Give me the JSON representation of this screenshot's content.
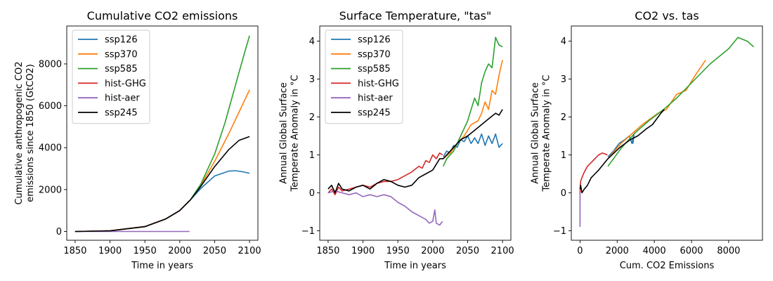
{
  "chart_data": [
    {
      "type": "line",
      "title": "Cumulative CO2 emissions",
      "xlabel": "Time in years",
      "ylabel": [
        "Cumulative anthropogenic CO2",
        "emissions since 1850 (GtCO2)"
      ],
      "xlim": [
        1838,
        2112
      ],
      "ylim": [
        -420,
        9810
      ],
      "xticks": [
        1850,
        1900,
        1950,
        2000,
        2050,
        2100
      ],
      "yticks": [
        0,
        2000,
        4000,
        6000,
        8000
      ],
      "legend": "upper-left",
      "series": [
        {
          "name": "ssp126",
          "color": "#1f77b4",
          "x": [
            1850,
            1900,
            1950,
            1980,
            2000,
            2015,
            2030,
            2050,
            2070,
            2080,
            2090,
            2100
          ],
          "y": [
            0,
            30,
            230,
            600,
            1000,
            1500,
            2050,
            2650,
            2880,
            2900,
            2850,
            2780
          ]
        },
        {
          "name": "ssp370",
          "color": "#ff7f0e",
          "x": [
            1850,
            1900,
            1950,
            1980,
            2000,
            2015,
            2030,
            2050,
            2070,
            2085,
            2100
          ],
          "y": [
            0,
            30,
            230,
            600,
            1000,
            1500,
            2200,
            3350,
            4650,
            5700,
            6760
          ]
        },
        {
          "name": "ssp585",
          "color": "#2ca02c",
          "x": [
            1850,
            1900,
            1950,
            1980,
            2000,
            2015,
            2030,
            2050,
            2065,
            2080,
            2090,
            2100
          ],
          "y": [
            0,
            30,
            230,
            600,
            1000,
            1500,
            2250,
            3700,
            5200,
            7000,
            8200,
            9350
          ]
        },
        {
          "name": "hist-GHG",
          "color": "#d62728",
          "x": [
            1850,
            1900,
            1950,
            1980,
            2000,
            2014
          ],
          "y": [
            0,
            30,
            230,
            600,
            1000,
            1480
          ]
        },
        {
          "name": "hist-aer",
          "color": "#9467bd",
          "x": [
            1850,
            1950,
            2014
          ],
          "y": [
            0,
            0,
            0
          ]
        },
        {
          "name": "ssp245",
          "color": "#000000",
          "x": [
            1850,
            1900,
            1950,
            1980,
            2000,
            2015,
            2030,
            2050,
            2070,
            2085,
            2100
          ],
          "y": [
            0,
            30,
            230,
            600,
            1000,
            1500,
            2150,
            3100,
            3900,
            4350,
            4530
          ]
        }
      ]
    },
    {
      "type": "line",
      "title": "Surface Temperature, \"tas\"",
      "xlabel": "Time in years",
      "ylabel": [
        "Annual Global Surface",
        "Temperate Anomaly in °C"
      ],
      "xlim": [
        1838,
        2112
      ],
      "ylim": [
        -1.25,
        4.4
      ],
      "xticks": [
        1850,
        1900,
        1950,
        2000,
        2050,
        2100
      ],
      "yticks": [
        -1,
        0,
        1,
        2,
        3,
        4
      ],
      "legend": "upper-left",
      "series": [
        {
          "name": "ssp126",
          "color": "#1f77b4",
          "x": [
            2015,
            2020,
            2025,
            2030,
            2035,
            2040,
            2045,
            2050,
            2055,
            2060,
            2065,
            2070,
            2075,
            2080,
            2085,
            2090,
            2095,
            2100
          ],
          "y": [
            0.95,
            1.1,
            1.05,
            1.25,
            1.2,
            1.4,
            1.35,
            1.5,
            1.3,
            1.45,
            1.3,
            1.55,
            1.25,
            1.5,
            1.3,
            1.55,
            1.2,
            1.3
          ]
        },
        {
          "name": "ssp370",
          "color": "#ff7f0e",
          "x": [
            2015,
            2025,
            2035,
            2045,
            2055,
            2065,
            2070,
            2075,
            2080,
            2085,
            2090,
            2095,
            2100
          ],
          "y": [
            0.9,
            1.05,
            1.3,
            1.5,
            1.8,
            1.9,
            2.1,
            2.4,
            2.2,
            2.7,
            2.6,
            3.1,
            3.5
          ]
        },
        {
          "name": "ssp585",
          "color": "#2ca02c",
          "x": [
            2015,
            2020,
            2025,
            2030,
            2035,
            2040,
            2045,
            2050,
            2055,
            2060,
            2065,
            2070,
            2075,
            2080,
            2085,
            2090,
            2095,
            2100
          ],
          "y": [
            0.7,
            0.9,
            1.0,
            1.1,
            1.3,
            1.5,
            1.7,
            1.9,
            2.2,
            2.5,
            2.3,
            2.9,
            3.2,
            3.4,
            3.3,
            4.1,
            3.9,
            3.85
          ]
        },
        {
          "name": "hist-GHG",
          "color": "#d62728",
          "x": [
            1850,
            1855,
            1860,
            1865,
            1870,
            1880,
            1890,
            1900,
            1910,
            1920,
            1930,
            1940,
            1950,
            1960,
            1970,
            1980,
            1985,
            1990,
            1995,
            2000,
            2005,
            2010,
            2014
          ],
          "y": [
            0.0,
            0.1,
            -0.05,
            0.15,
            0.05,
            0.1,
            0.15,
            0.2,
            0.15,
            0.25,
            0.3,
            0.3,
            0.35,
            0.45,
            0.55,
            0.7,
            0.65,
            0.85,
            0.8,
            1.0,
            0.9,
            1.05,
            1.0
          ]
        },
        {
          "name": "hist-aer",
          "color": "#9467bd",
          "x": [
            1850,
            1860,
            1870,
            1880,
            1890,
            1900,
            1910,
            1920,
            1930,
            1940,
            1950,
            1960,
            1970,
            1980,
            1990,
            1995,
            2000,
            2003,
            2005,
            2010,
            2014
          ],
          "y": [
            0.0,
            0.05,
            0.0,
            -0.05,
            0.0,
            -0.1,
            -0.05,
            -0.1,
            -0.05,
            -0.1,
            -0.25,
            -0.35,
            -0.5,
            -0.6,
            -0.7,
            -0.8,
            -0.75,
            -0.45,
            -0.8,
            -0.85,
            -0.75
          ]
        },
        {
          "name": "ssp245",
          "color": "#000000",
          "x": [
            1850,
            1855,
            1860,
            1865,
            1870,
            1880,
            1890,
            1900,
            1910,
            1920,
            1930,
            1940,
            1950,
            1960,
            1970,
            1980,
            1990,
            2000,
            2010,
            2015,
            2020,
            2030,
            2040,
            2050,
            2060,
            2070,
            2080,
            2090,
            2095,
            2100
          ],
          "y": [
            0.1,
            0.2,
            0.0,
            0.25,
            0.1,
            0.05,
            0.15,
            0.2,
            0.1,
            0.25,
            0.35,
            0.3,
            0.2,
            0.15,
            0.2,
            0.4,
            0.5,
            0.6,
            0.9,
            0.9,
            1.0,
            1.2,
            1.4,
            1.5,
            1.65,
            1.8,
            1.95,
            2.1,
            2.05,
            2.2
          ]
        }
      ]
    },
    {
      "type": "line",
      "title": "CO2 vs. tas",
      "xlabel": "Cum. CO2 Emissions",
      "ylabel": [
        "Annual Global Surface",
        "Temperate Anomaly in °C"
      ],
      "xlim": [
        -470,
        9820
      ],
      "ylim": [
        -1.25,
        4.4
      ],
      "xticks": [
        0,
        2000,
        4000,
        6000,
        8000
      ],
      "yticks": [
        -1,
        0,
        1,
        2,
        3,
        4
      ],
      "legend": "none",
      "series": [
        {
          "name": "ssp126",
          "color": "#1f77b4",
          "x": [
            1500,
            1800,
            2100,
            2400,
            2650,
            2800,
            2900,
            2850
          ],
          "y": [
            0.95,
            1.1,
            1.3,
            1.4,
            1.5,
            1.3,
            1.55,
            1.3
          ]
        },
        {
          "name": "ssp370",
          "color": "#ff7f0e",
          "x": [
            1500,
            2200,
            3350,
            4200,
            4650,
            5200,
            5700,
            6200,
            6760
          ],
          "y": [
            0.9,
            1.3,
            1.8,
            2.1,
            2.2,
            2.6,
            2.7,
            3.1,
            3.5
          ]
        },
        {
          "name": "ssp585",
          "color": "#2ca02c",
          "x": [
            1500,
            2250,
            3000,
            3700,
            4500,
            5200,
            6000,
            7000,
            8000,
            8500,
            9000,
            9350
          ],
          "y": [
            0.7,
            1.2,
            1.6,
            1.9,
            2.2,
            2.5,
            2.9,
            3.4,
            3.8,
            4.1,
            4.0,
            3.85
          ]
        },
        {
          "name": "hist-GHG",
          "color": "#d62728",
          "x": [
            0,
            30,
            100,
            230,
            400,
            600,
            800,
            1000,
            1200,
            1480
          ],
          "y": [
            0.0,
            0.3,
            0.4,
            0.55,
            0.7,
            0.8,
            0.9,
            1.0,
            1.05,
            1.0
          ]
        },
        {
          "name": "hist-aer",
          "color": "#9467bd",
          "x": [
            0,
            0,
            0
          ],
          "y": [
            0.0,
            -0.5,
            -0.9
          ]
        },
        {
          "name": "ssp245",
          "color": "#000000",
          "x": [
            0,
            30,
            100,
            230,
            400,
            600,
            800,
            1000,
            1500,
            2150,
            2700,
            3100,
            3600,
            3900,
            4350,
            4530
          ],
          "y": [
            0.1,
            0.2,
            0.0,
            0.1,
            0.2,
            0.4,
            0.5,
            0.6,
            0.9,
            1.2,
            1.4,
            1.5,
            1.7,
            1.8,
            2.1,
            2.2
          ]
        }
      ]
    }
  ]
}
